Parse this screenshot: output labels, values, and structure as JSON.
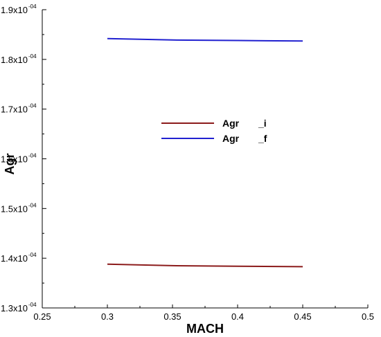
{
  "chart_data": {
    "type": "line",
    "xlabel": "MACH",
    "ylabel": "Agr",
    "xlim": [
      0.25,
      0.5
    ],
    "ylim": [
      0.00013,
      0.00019
    ],
    "x_ticks": [
      0.25,
      0.3,
      0.35,
      0.4,
      0.45,
      0.5
    ],
    "x_tick_labels": [
      "0.25",
      "0.3",
      "0.35",
      "0.4",
      "0.45",
      "0.5"
    ],
    "y_ticks": [
      0.00013,
      0.00014,
      0.00015,
      0.00016,
      0.00017,
      0.00018,
      0.00019
    ],
    "y_tick_labels": [
      {
        "mantissa": "1.3x10",
        "exponent": "-04"
      },
      {
        "mantissa": "1.4x10",
        "exponent": "-04"
      },
      {
        "mantissa": "1.5x10",
        "exponent": "-04"
      },
      {
        "mantissa": "1.6x10",
        "exponent": "-04"
      },
      {
        "mantissa": "1.7x10",
        "exponent": "-04"
      },
      {
        "mantissa": "1.8x10",
        "exponent": "-04"
      },
      {
        "mantissa": "1.9x10",
        "exponent": "-04"
      }
    ],
    "grid": false,
    "legend_position": "center",
    "series": [
      {
        "name": "Agr",
        "suffix": "_i",
        "color": "#8b1a1a",
        "x": [
          0.3,
          0.35,
          0.4,
          0.45
        ],
        "y": [
          0.0001388,
          0.0001385,
          0.0001384,
          0.0001383
        ]
      },
      {
        "name": "Agr",
        "suffix": "_f",
        "color": "#2020d0",
        "x": [
          0.3,
          0.35,
          0.4,
          0.45
        ],
        "y": [
          0.0001842,
          0.0001839,
          0.0001838,
          0.0001837
        ]
      }
    ]
  }
}
